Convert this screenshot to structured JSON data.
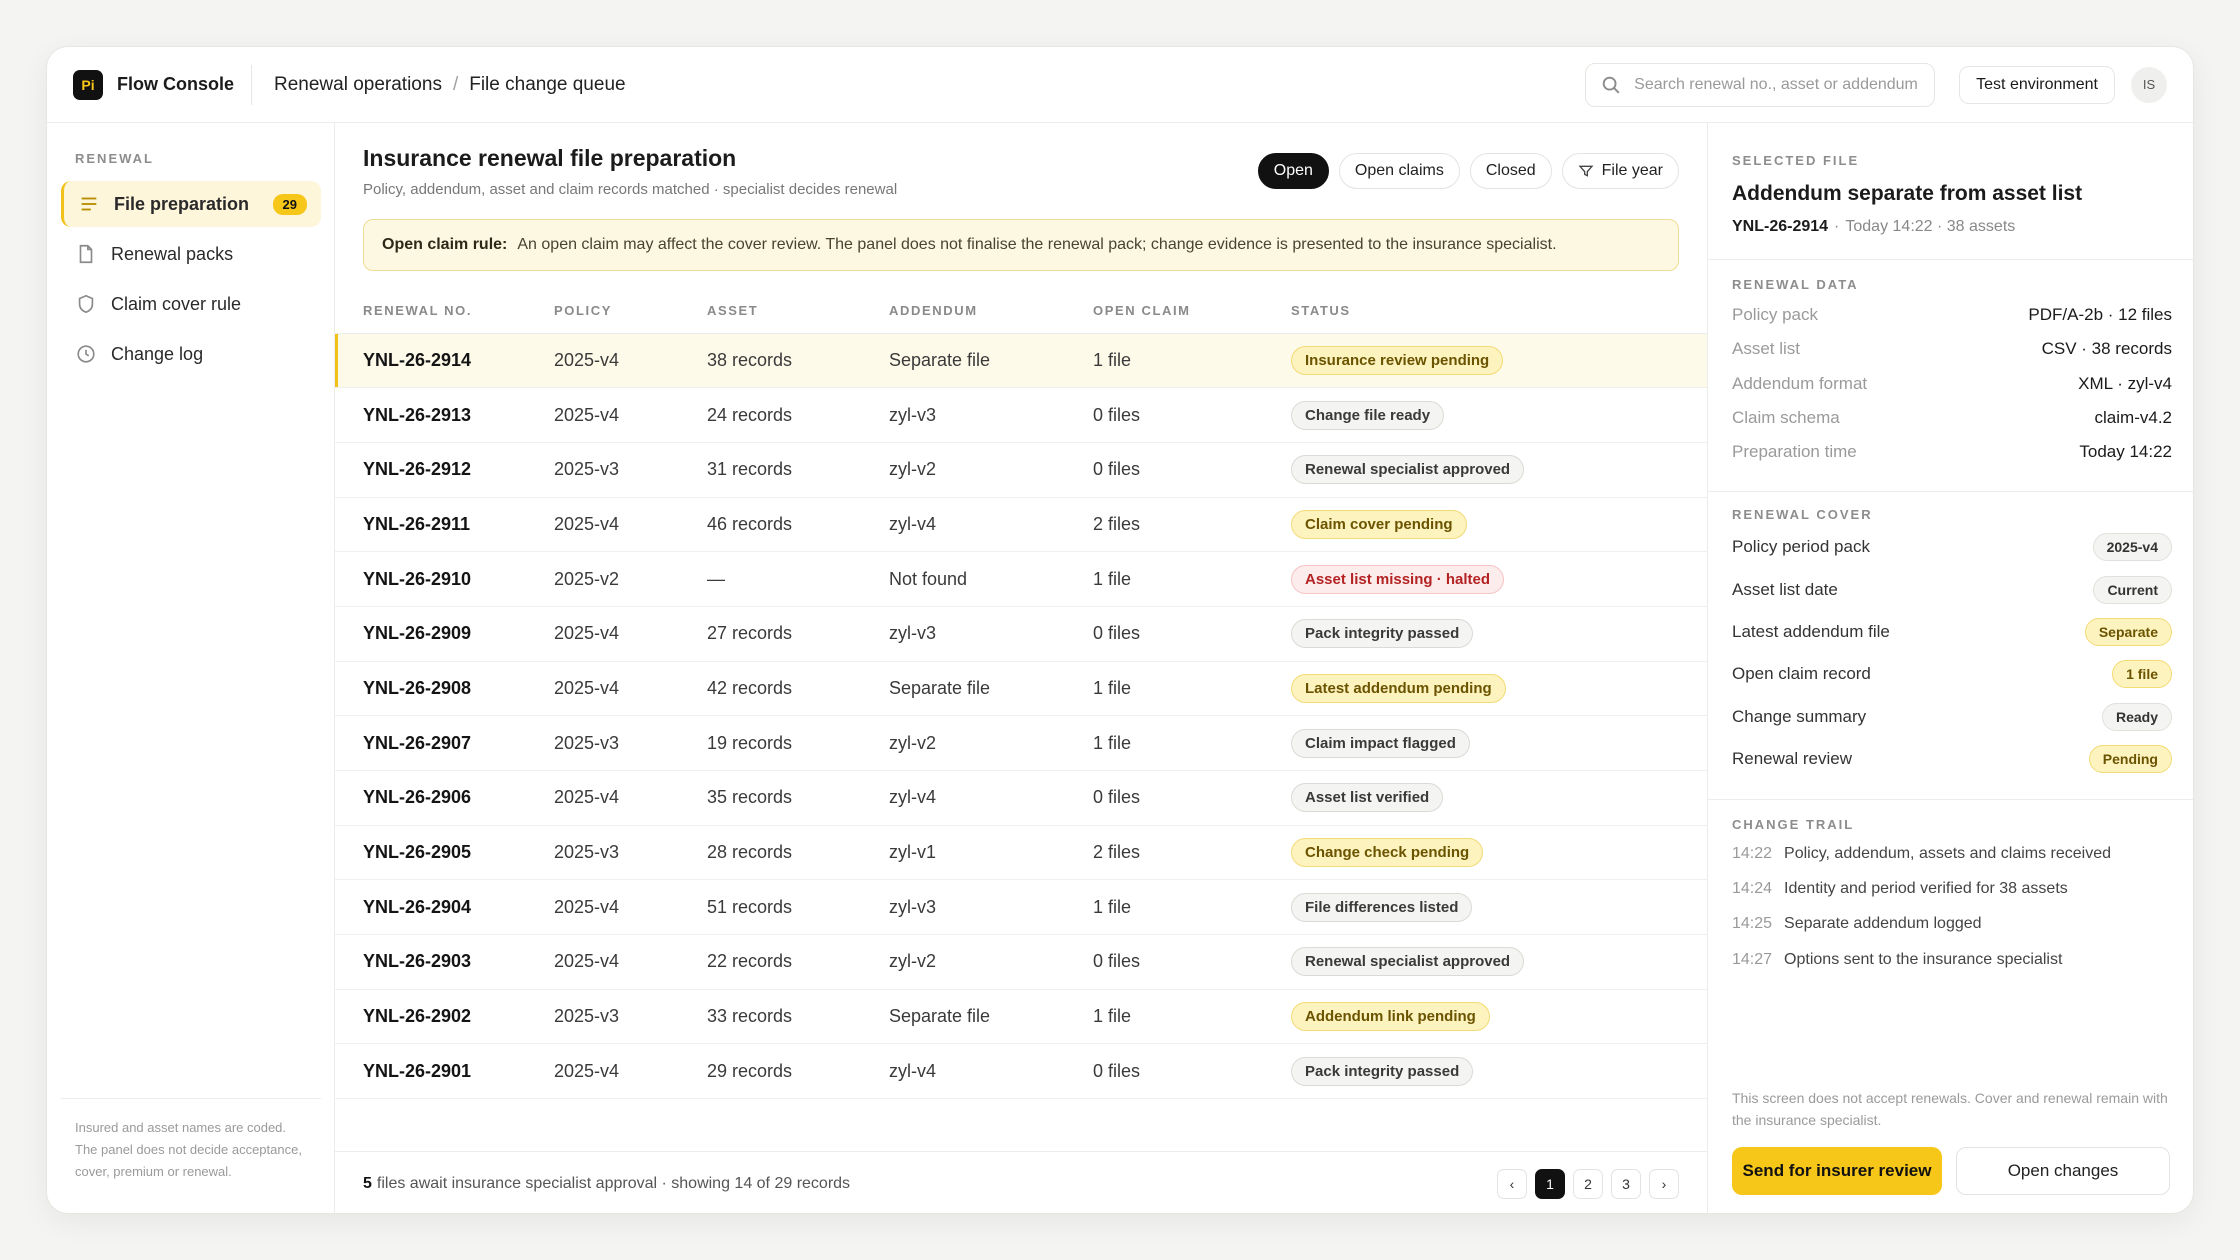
{
  "brand": {
    "logo_text": "Pi",
    "name": "Flow Console"
  },
  "breadcrumb": {
    "parent": "Renewal operations",
    "separator": "/",
    "current": "File change queue"
  },
  "search": {
    "placeholder": "Search renewal no., asset or addendum"
  },
  "environment_label": "Test environment",
  "user_initials": "IS",
  "sidebar": {
    "heading": "RENEWAL",
    "items": [
      {
        "label": "File preparation",
        "icon": "list-icon",
        "badge": "29",
        "active": true
      },
      {
        "label": "Renewal packs",
        "icon": "document-icon"
      },
      {
        "label": "Claim cover rule",
        "icon": "shield-icon"
      },
      {
        "label": "Change log",
        "icon": "clock-icon"
      }
    ],
    "footer_note": "Insured and asset names are coded. The panel does not decide acceptance, cover, premium or renewal."
  },
  "main": {
    "title": "Insurance renewal file preparation",
    "subtitle": "Policy, addendum, asset and claim records matched · specialist decides renewal",
    "filters": [
      {
        "label": "Open",
        "active": true
      },
      {
        "label": "Open claims"
      },
      {
        "label": "Closed"
      },
      {
        "label": "File year",
        "icon": "filter-icon"
      }
    ],
    "rule": {
      "label": "Open claim rule:",
      "text": "An open claim may affect the cover review. The panel does not finalise the renewal pack; change evidence is presented to the insurance specialist."
    },
    "columns": [
      "RENEWAL NO.",
      "POLICY",
      "ASSET",
      "ADDENDUM",
      "OPEN CLAIM",
      "STATUS"
    ],
    "rows": [
      {
        "no": "YNL-26-2914",
        "policy": "2025-v4",
        "asset": "38 records",
        "addendum": "Separate file",
        "claim": "1 file",
        "status": "Insurance review pending",
        "tone": "warn",
        "selected": true
      },
      {
        "no": "YNL-26-2913",
        "policy": "2025-v4",
        "asset": "24 records",
        "addendum": "zyl-v3",
        "claim": "0 files",
        "status": "Change file ready",
        "tone": "neutral"
      },
      {
        "no": "YNL-26-2912",
        "policy": "2025-v3",
        "asset": "31 records",
        "addendum": "zyl-v2",
        "claim": "0 files",
        "status": "Renewal specialist approved",
        "tone": "neutral"
      },
      {
        "no": "YNL-26-2911",
        "policy": "2025-v4",
        "asset": "46 records",
        "addendum": "zyl-v4",
        "claim": "2 files",
        "status": "Claim cover pending",
        "tone": "warn"
      },
      {
        "no": "YNL-26-2910",
        "policy": "2025-v2",
        "asset": "—",
        "addendum": "Not found",
        "claim": "1 file",
        "status": "Asset list missing · halted",
        "tone": "err"
      },
      {
        "no": "YNL-26-2909",
        "policy": "2025-v4",
        "asset": "27 records",
        "addendum": "zyl-v3",
        "claim": "0 files",
        "status": "Pack integrity passed",
        "tone": "neutral"
      },
      {
        "no": "YNL-26-2908",
        "policy": "2025-v4",
        "asset": "42 records",
        "addendum": "Separate file",
        "claim": "1 file",
        "status": "Latest addendum pending",
        "tone": "warn"
      },
      {
        "no": "YNL-26-2907",
        "policy": "2025-v3",
        "asset": "19 records",
        "addendum": "zyl-v2",
        "claim": "1 file",
        "status": "Claim impact flagged",
        "tone": "neutral"
      },
      {
        "no": "YNL-26-2906",
        "policy": "2025-v4",
        "asset": "35 records",
        "addendum": "zyl-v4",
        "claim": "0 files",
        "status": "Asset list verified",
        "tone": "neutral"
      },
      {
        "no": "YNL-26-2905",
        "policy": "2025-v3",
        "asset": "28 records",
        "addendum": "zyl-v1",
        "claim": "2 files",
        "status": "Change check pending",
        "tone": "warn"
      },
      {
        "no": "YNL-26-2904",
        "policy": "2025-v4",
        "asset": "51 records",
        "addendum": "zyl-v3",
        "claim": "1 file",
        "status": "File differences listed",
        "tone": "neutral"
      },
      {
        "no": "YNL-26-2903",
        "policy": "2025-v4",
        "asset": "22 records",
        "addendum": "zyl-v2",
        "claim": "0 files",
        "status": "Renewal specialist approved",
        "tone": "neutral"
      },
      {
        "no": "YNL-26-2902",
        "policy": "2025-v3",
        "asset": "33 records",
        "addendum": "Separate file",
        "claim": "1 file",
        "status": "Addendum link pending",
        "tone": "warn"
      },
      {
        "no": "YNL-26-2901",
        "policy": "2025-v4",
        "asset": "29 records",
        "addendum": "zyl-v4",
        "claim": "0 files",
        "status": "Pack integrity passed",
        "tone": "neutral"
      }
    ],
    "footer": {
      "count": "5",
      "text": "files await insurance specialist approval · showing 14 of 29 records"
    },
    "pagination": {
      "prev": "‹",
      "pages": [
        "1",
        "2",
        "3"
      ],
      "current": "1",
      "next": "›"
    }
  },
  "panel": {
    "selected_label": "SELECTED FILE",
    "selected_title": "Addendum separate from asset list",
    "selected_no": "YNL-26-2914",
    "selected_meta": "Today 14:22 · 38 assets",
    "renewal_data_label": "RENEWAL DATA",
    "renewal_data": [
      {
        "key": "Policy pack",
        "value": "PDF/A-2b · 12 files"
      },
      {
        "key": "Asset list",
        "value": "CSV · 38 records"
      },
      {
        "key": "Addendum format",
        "value": "XML · zyl-v4"
      },
      {
        "key": "Claim schema",
        "value": "claim-v4.2"
      },
      {
        "key": "Preparation time",
        "value": "Today 14:22"
      }
    ],
    "renewal_cover_label": "RENEWAL COVER",
    "renewal_cover": [
      {
        "key": "Policy period pack",
        "value": "2025-v4",
        "tone": "neutral"
      },
      {
        "key": "Asset list date",
        "value": "Current",
        "tone": "neutral"
      },
      {
        "key": "Latest addendum file",
        "value": "Separate",
        "tone": "warn"
      },
      {
        "key": "Open claim record",
        "value": "1 file",
        "tone": "warn"
      },
      {
        "key": "Change summary",
        "value": "Ready",
        "tone": "neutral"
      },
      {
        "key": "Renewal review",
        "value": "Pending",
        "tone": "warn"
      }
    ],
    "change_trail_label": "CHANGE TRAIL",
    "change_trail": [
      {
        "time": "14:22",
        "text": "Policy, addendum, assets and claims received"
      },
      {
        "time": "14:24",
        "text": "Identity and period verified for 38 assets"
      },
      {
        "time": "14:25",
        "text": "Separate addendum logged"
      },
      {
        "time": "14:27",
        "text": "Options sent to the insurance specialist"
      }
    ],
    "note": "This screen does not accept renewals. Cover and renewal remain with the insurance specialist.",
    "primary_action": "Send for insurer review",
    "secondary_action": "Open changes"
  }
}
